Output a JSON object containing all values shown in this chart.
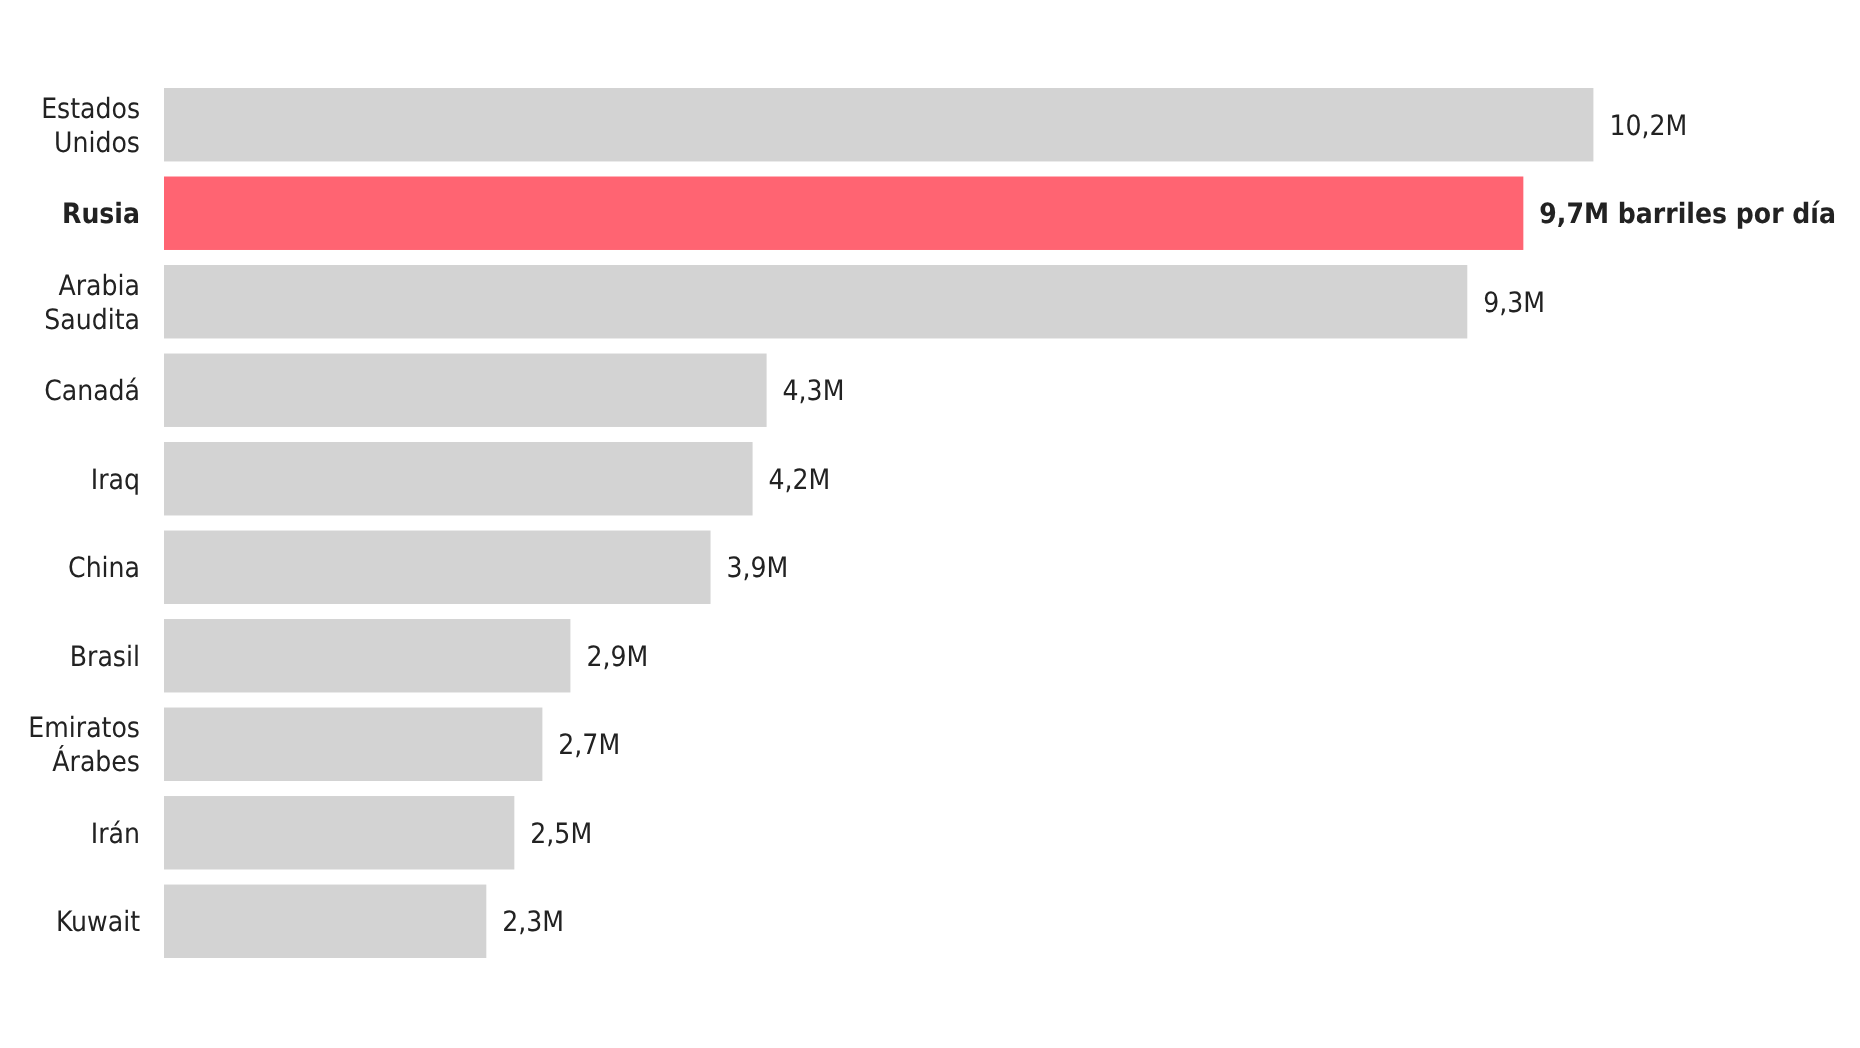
{
  "chart_data": {
    "type": "bar",
    "orientation": "horizontal",
    "categories": [
      "Estados Unidos",
      "Rusia",
      "Arabia Saudita",
      "Canadá",
      "Iraq",
      "China",
      "Brasil",
      "Emiratos Árabes",
      "Irán",
      "Kuwait"
    ],
    "values": [
      10.2,
      9.7,
      9.3,
      4.3,
      4.2,
      3.9,
      2.9,
      2.7,
      2.5,
      2.3
    ],
    "colors": [
      "#d3d3d3",
      "#ff6472",
      "#d3d3d3",
      "#d3d3d3",
      "#d3d3d3",
      "#d3d3d3",
      "#d3d3d3",
      "#d3d3d3",
      "#d3d3d3",
      "#d3d3d3"
    ],
    "value_labels": [
      "10,2M",
      "9,7M barriles por día",
      "9,3M",
      "4,3M",
      "4,2M",
      "3,9M",
      "2,9M",
      "2,7M",
      "2,5M",
      "2,3M"
    ]
  }
}
